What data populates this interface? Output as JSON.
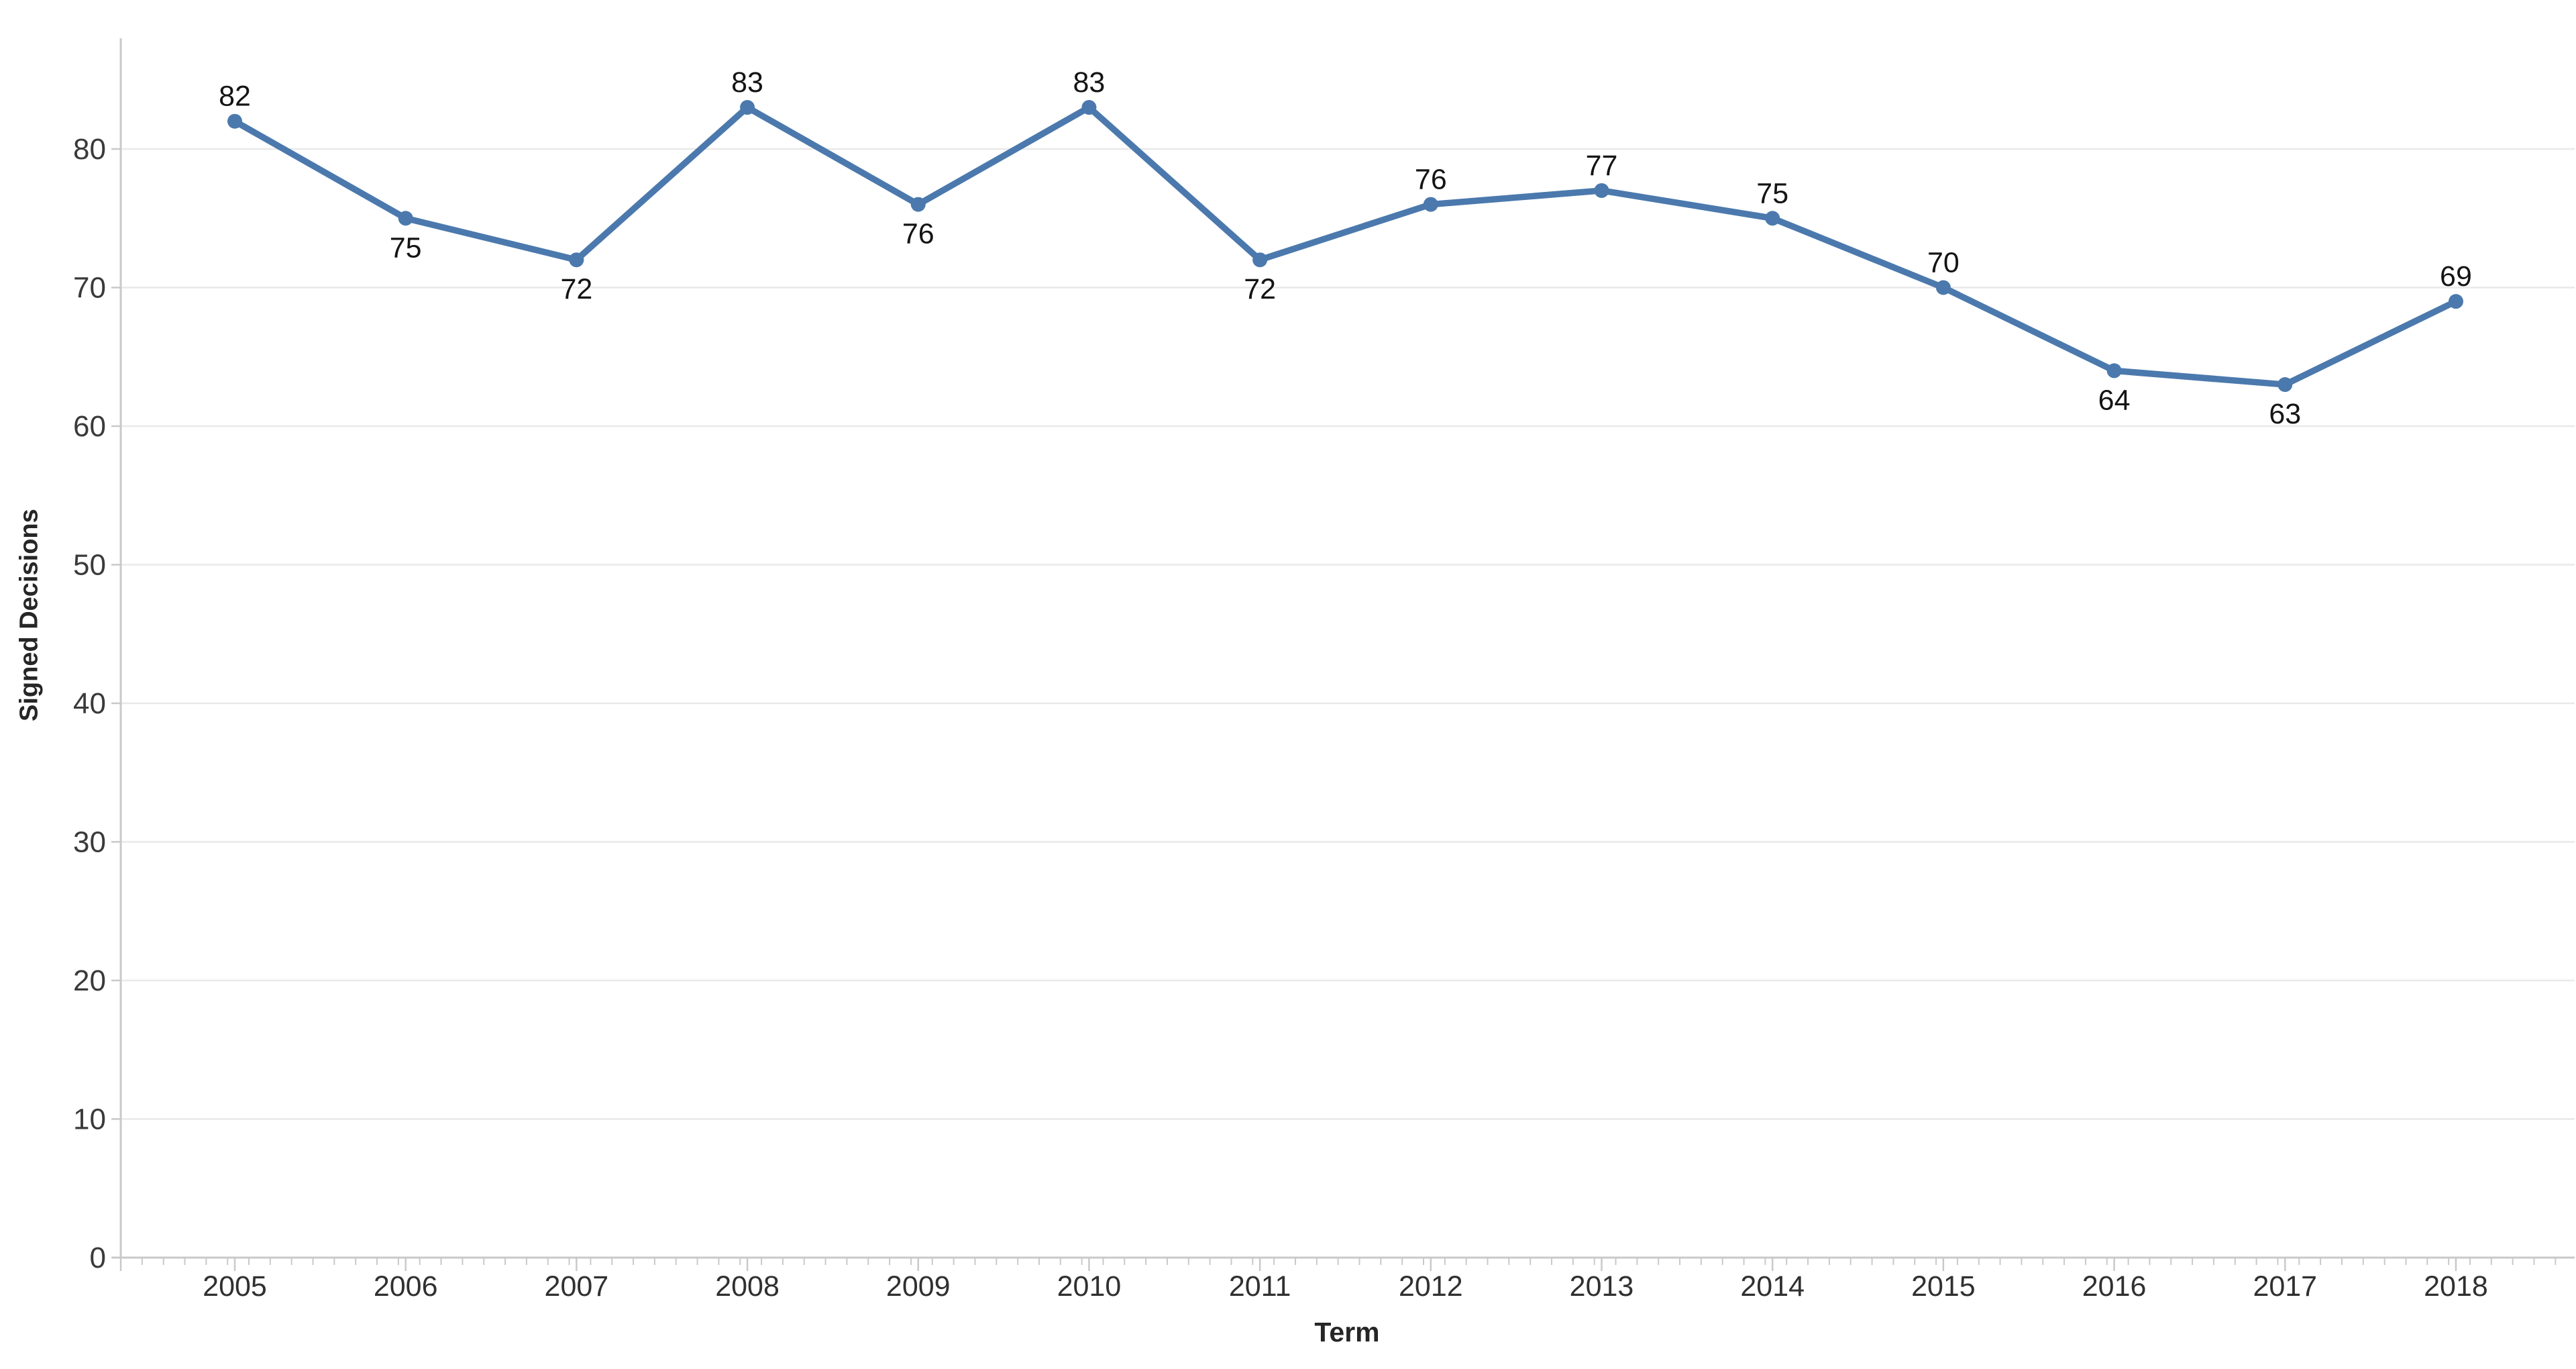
{
  "page": {
    "background_color": "#ffffff"
  },
  "chart_data": {
    "type": "line",
    "title": "",
    "xlabel": "Term",
    "ylabel": "Signed Decisions",
    "categories": [
      "2005",
      "2006",
      "2007",
      "2008",
      "2009",
      "2010",
      "2011",
      "2012",
      "2013",
      "2014",
      "2015",
      "2016",
      "2017",
      "2018"
    ],
    "series": [
      {
        "name": "Signed Decisions",
        "values": [
          82,
          75,
          72,
          83,
          76,
          83,
          72,
          76,
          77,
          75,
          70,
          64,
          63,
          69
        ],
        "data_labels": [
          "82",
          "75",
          "72",
          "83",
          "76",
          "83",
          "72",
          "76",
          "77",
          "75",
          "70",
          "64",
          "63",
          "69"
        ],
        "data_label_positions": [
          "above",
          "below",
          "below",
          "above",
          "below",
          "above",
          "below",
          "above",
          "above",
          "above",
          "above",
          "below",
          "below",
          "above"
        ]
      }
    ],
    "y_ticks": [
      0,
      10,
      20,
      30,
      40,
      50,
      60,
      70,
      80
    ],
    "ylim": [
      0,
      88
    ],
    "grid": "horizontal-only",
    "legend": "none",
    "marker": "circle",
    "colors": {
      "line": "#4b79ad",
      "marker": "#4b79ad",
      "gridline": "#e9e9e9",
      "axis_line": "#c9c9c9",
      "tick_mark": "#c9c9c9",
      "y_tick_label": "#3a3a3a",
      "x_tick_label": "#303030",
      "data_label": "#141414",
      "axis_title": "#262626",
      "background": "#ffffff"
    }
  }
}
